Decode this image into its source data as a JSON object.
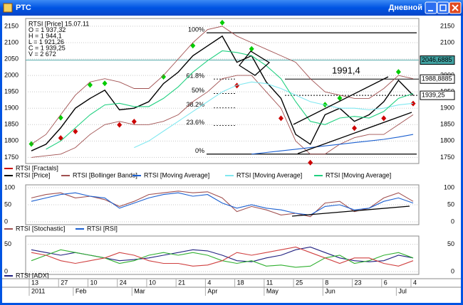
{
  "window": {
    "title": "РТС",
    "timeframe": "Дневной"
  },
  "chart_data": [
    {
      "type": "line",
      "info": [
        "RTSI [Price] 15.07.11",
        "O = 1 937,32",
        "H = 1 944,1",
        "L = 1 921,26",
        "C = 1 939,25",
        "V = 2 672"
      ],
      "annotation": "1991,4",
      "ylim": [
        1740,
        2165
      ],
      "yticks": [
        1750,
        1800,
        1850,
        1900,
        1950,
        2000,
        2050,
        2100,
        2150
      ],
      "fib_levels": [
        {
          "value": 2130,
          "label": "100%"
        },
        {
          "value": 1989,
          "label": "61.8%"
        },
        {
          "value": 1945,
          "label": "50%"
        },
        {
          "value": 1901,
          "label": "38.2%"
        },
        {
          "value": 1847,
          "label": "23.6%"
        },
        {
          "value": 1760,
          "label": "0%"
        }
      ],
      "price_labels": [
        {
          "value": 2046.6885,
          "label": "2046,6885"
        },
        {
          "value": 1988.8885,
          "label": "1988,8885"
        },
        {
          "value": 1939.25,
          "label": "1939,25"
        }
      ],
      "series": [
        {
          "name": "RTSI [Fractals]",
          "color": "#cc0000",
          "up_color": "#00cc00",
          "up": [
            1780,
            null,
            1860,
            null,
            1960,
            1965,
            null,
            null,
            null,
            1985,
            null,
            2080,
            null,
            2150,
            null,
            2070,
            null,
            null,
            null,
            null,
            1900,
            1920,
            null,
            null,
            null,
            2000,
            null
          ],
          "down": [
            null,
            null,
            1820,
            1840,
            null,
            null,
            1860,
            1870,
            null,
            null,
            null,
            null,
            null,
            null,
            1980,
            null,
            null,
            1880,
            null,
            1745,
            null,
            null,
            1850,
            null,
            1880,
            null,
            1925
          ]
        },
        {
          "name": "RTSI [Price]",
          "color": "#000000",
          "values": [
            1770,
            1790,
            1840,
            1900,
            1930,
            1955,
            1895,
            1900,
            1920,
            1975,
            2010,
            2060,
            2090,
            2120,
            2040,
            2060,
            1980,
            1930,
            1820,
            1790,
            1880,
            1900,
            1860,
            1880,
            1920,
            1985,
            1939.25
          ]
        },
        {
          "name": "RTSI [Bollinger Bands]",
          "color": "#a05050",
          "upper": [
            1790,
            1820,
            1880,
            1940,
            1980,
            1990,
            1980,
            1960,
            1960,
            2000,
            2050,
            2100,
            2140,
            2150,
            2120,
            2100,
            2080,
            2060,
            2040,
            1990,
            1950,
            1940,
            1930,
            1930,
            1960,
            2000,
            1990
          ],
          "lower": [
            1750,
            1755,
            1760,
            1780,
            1820,
            1850,
            1860,
            1850,
            1850,
            1860,
            1880,
            1920,
            1950,
            1990,
            2000,
            2000,
            1950,
            1900,
            1800,
            1760,
            1760,
            1790,
            1810,
            1820,
            1820,
            1850,
            1880
          ]
        },
        {
          "name": "RTSI [Moving Average]",
          "color": "#1a5fd0",
          "values": [
            null,
            null,
            null,
            null,
            null,
            null,
            null,
            null,
            null,
            null,
            null,
            null,
            null,
            null,
            null,
            1760,
            1765,
            1770,
            1775,
            1780,
            1785,
            1790,
            1795,
            1800,
            1805,
            1812,
            1820
          ]
        },
        {
          "name": "RTSI [Moving Average]",
          "color": "#80e8f0",
          "values": [
            null,
            null,
            null,
            null,
            null,
            null,
            null,
            1780,
            1800,
            1830,
            1860,
            1890,
            1920,
            1950,
            1970,
            1980,
            1975,
            1960,
            1940,
            1920,
            1910,
            1900,
            1900,
            1895,
            1900,
            1910,
            1915
          ]
        },
        {
          "name": "RTSI [Moving Average]",
          "color": "#20d080",
          "values": [
            null,
            1775,
            1800,
            1840,
            1880,
            1910,
            1915,
            1905,
            1905,
            1930,
            1965,
            2010,
            2045,
            2075,
            2070,
            2060,
            2030,
            1990,
            1920,
            1860,
            1850,
            1870,
            1875,
            1870,
            1890,
            1930,
            1945
          ]
        }
      ]
    },
    {
      "type": "line",
      "ylim": [
        0,
        100
      ],
      "yticks": [
        0,
        50,
        100
      ],
      "series": [
        {
          "name": "RTSI [Stochastic]",
          "color": "#a05050",
          "values": [
            70,
            80,
            85,
            70,
            75,
            65,
            45,
            60,
            80,
            85,
            90,
            85,
            88,
            70,
            30,
            45,
            35,
            20,
            25,
            15,
            55,
            60,
            30,
            40,
            70,
            85,
            60
          ]
        },
        {
          "name": "RTSI [RSI]",
          "color": "#1a5fd0",
          "values": [
            60,
            70,
            80,
            85,
            75,
            70,
            40,
            55,
            70,
            80,
            85,
            75,
            80,
            55,
            40,
            50,
            40,
            35,
            25,
            20,
            45,
            50,
            35,
            40,
            60,
            70,
            55
          ]
        }
      ]
    },
    {
      "type": "line",
      "ylim": [
        0,
        60
      ],
      "yticks": [
        0,
        50
      ],
      "categories": [
        "13",
        null,
        "27",
        null,
        "10",
        null,
        "24",
        null,
        "10",
        null,
        "21",
        null,
        "4",
        null,
        "18",
        null,
        "11",
        null,
        "25",
        null,
        "8",
        null,
        "23",
        null,
        "6",
        null,
        "4"
      ],
      "months": [
        "2011",
        null,
        null,
        "Feb",
        null,
        null,
        null,
        "Mar",
        null,
        null,
        null,
        null,
        "Apr",
        null,
        null,
        null,
        "May",
        null,
        null,
        null,
        "Jun",
        null,
        null,
        null,
        null,
        "Jul",
        null
      ],
      "series": [
        {
          "name": "RTSI [ADX]",
          "color": "#202080",
          "values": [
            40,
            35,
            30,
            35,
            30,
            25,
            20,
            22,
            25,
            30,
            35,
            40,
            38,
            30,
            20,
            18,
            25,
            30,
            40,
            45,
            35,
            25,
            20,
            18,
            20,
            30,
            25
          ]
        },
        {
          "color": "#30b030",
          "values": [
            20,
            30,
            40,
            35,
            30,
            25,
            15,
            20,
            30,
            35,
            30,
            35,
            30,
            20,
            15,
            20,
            10,
            12,
            8,
            10,
            25,
            30,
            15,
            20,
            30,
            35,
            25
          ]
        },
        {
          "color": "#d04040",
          "values": [
            35,
            30,
            20,
            15,
            20,
            25,
            35,
            30,
            20,
            15,
            15,
            10,
            12,
            20,
            35,
            30,
            35,
            40,
            45,
            35,
            25,
            15,
            25,
            25,
            15,
            10,
            20
          ]
        }
      ]
    }
  ]
}
